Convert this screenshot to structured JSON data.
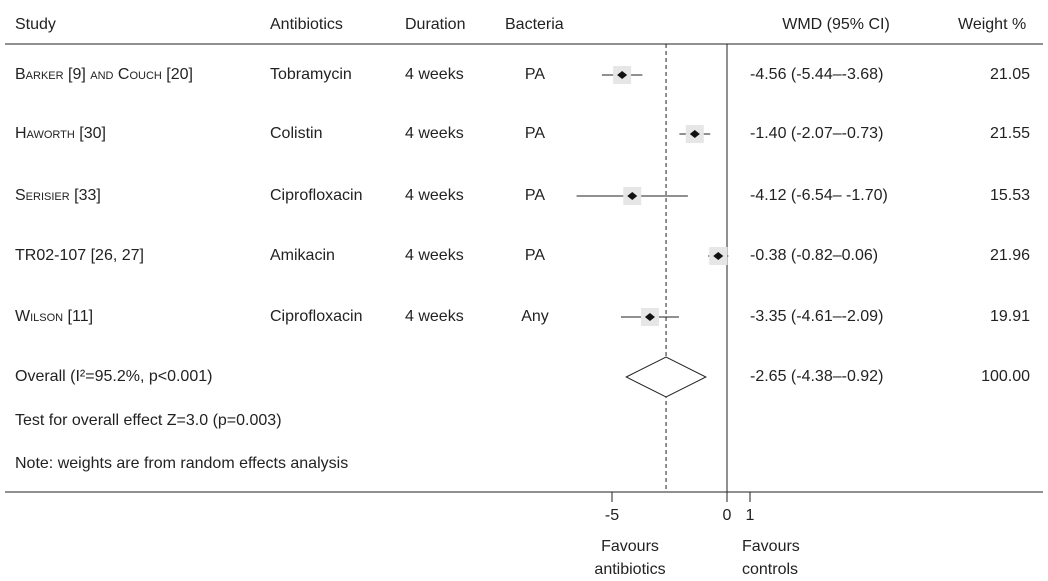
{
  "chart_data": {
    "type": "forest",
    "headers": {
      "study": "Study",
      "antibiotics": "Antibiotics",
      "duration": "Duration",
      "bacteria": "Bacteria",
      "wmd": "WMD (95% CI)",
      "weight": "Weight %"
    },
    "studies": [
      {
        "study": "Barker [9] and Couch [20]",
        "antibiotics": "Tobramycin",
        "duration": "4 weeks",
        "bacteria": "PA",
        "value": -4.56,
        "ci": [
          -5.44,
          -3.68
        ],
        "wmd_label": "-4.56 (-5.44–-3.68)",
        "weight": "21.05"
      },
      {
        "study": "Haworth [30]",
        "antibiotics": "Colistin",
        "duration": "4 weeks",
        "bacteria": "PA",
        "value": -1.4,
        "ci": [
          -2.07,
          -0.73
        ],
        "wmd_label": "-1.40 (-2.07–-0.73)",
        "weight": "21.55"
      },
      {
        "study": "Serisier [33]",
        "antibiotics": "Ciprofloxacin",
        "duration": "4 weeks",
        "bacteria": "PA",
        "value": -4.12,
        "ci": [
          -6.54,
          -1.7
        ],
        "wmd_label": "-4.12 (-6.54– -1.70)",
        "weight": "15.53"
      },
      {
        "study": "TR02-107 [26, 27]",
        "antibiotics": "Amikacin",
        "duration": "4 weeks",
        "bacteria": "PA",
        "value": -0.38,
        "ci": [
          -0.82,
          0.06
        ],
        "wmd_label": "-0.38 (-0.82–0.06)",
        "weight": "21.96"
      },
      {
        "study": "Wilson [11]",
        "antibiotics": "Ciprofloxacin",
        "duration": "4 weeks",
        "bacteria": "Any",
        "value": -3.35,
        "ci": [
          -4.61,
          -2.09
        ],
        "wmd_label": "-3.35 (-4.61–-2.09)",
        "weight": "19.91"
      }
    ],
    "overall": {
      "label": "Overall (I²=95.2%, p<0.001)",
      "value": -2.65,
      "ci": [
        -4.38,
        -0.92
      ],
      "wmd_label": "-2.65 (-4.38–-0.92)",
      "weight": "100.00"
    },
    "notes": [
      "Test for overall effect Z=3.0 (p=0.003)",
      "Note: weights are from random effects analysis"
    ],
    "xlim": [
      -7,
      2
    ],
    "xticks": [
      -5,
      0,
      1
    ],
    "left_label": [
      "Favours",
      "antibiotics"
    ],
    "right_label": [
      "Favours",
      "controls"
    ]
  }
}
